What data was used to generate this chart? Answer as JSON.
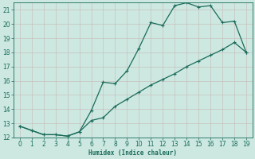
{
  "xlabel": "Humidex (Indice chaleur)",
  "bg_color": "#cce8e0",
  "line_color": "#1a6b5a",
  "grid_color": "#b8d8d0",
  "x_vals": [
    0,
    1,
    2,
    3,
    4,
    5,
    6,
    7,
    8,
    9,
    10,
    11,
    12,
    13,
    14,
    15,
    16,
    17,
    18,
    19
  ],
  "y_upper": [
    12.8,
    12.5,
    12.2,
    12.2,
    12.1,
    12.4,
    13.9,
    15.9,
    15.8,
    16.7,
    18.3,
    20.1,
    19.9,
    21.3,
    21.5,
    21.2,
    21.3,
    20.1,
    20.2,
    18.0
  ],
  "y_lower": [
    12.8,
    12.5,
    12.2,
    12.2,
    12.1,
    12.4,
    13.2,
    13.4,
    14.2,
    14.7,
    15.2,
    15.7,
    16.1,
    16.5,
    17.0,
    17.4,
    17.8,
    18.2,
    18.7,
    18.0
  ],
  "ylim": [
    12,
    21.5
  ],
  "xlim": [
    -0.5,
    19.5
  ],
  "yticks": [
    12,
    13,
    14,
    15,
    16,
    17,
    18,
    19,
    20,
    21
  ],
  "xticks": [
    0,
    1,
    2,
    3,
    4,
    5,
    6,
    7,
    8,
    9,
    10,
    11,
    12,
    13,
    14,
    15,
    16,
    17,
    18,
    19
  ],
  "markersize": 3.5,
  "linewidth": 0.9
}
